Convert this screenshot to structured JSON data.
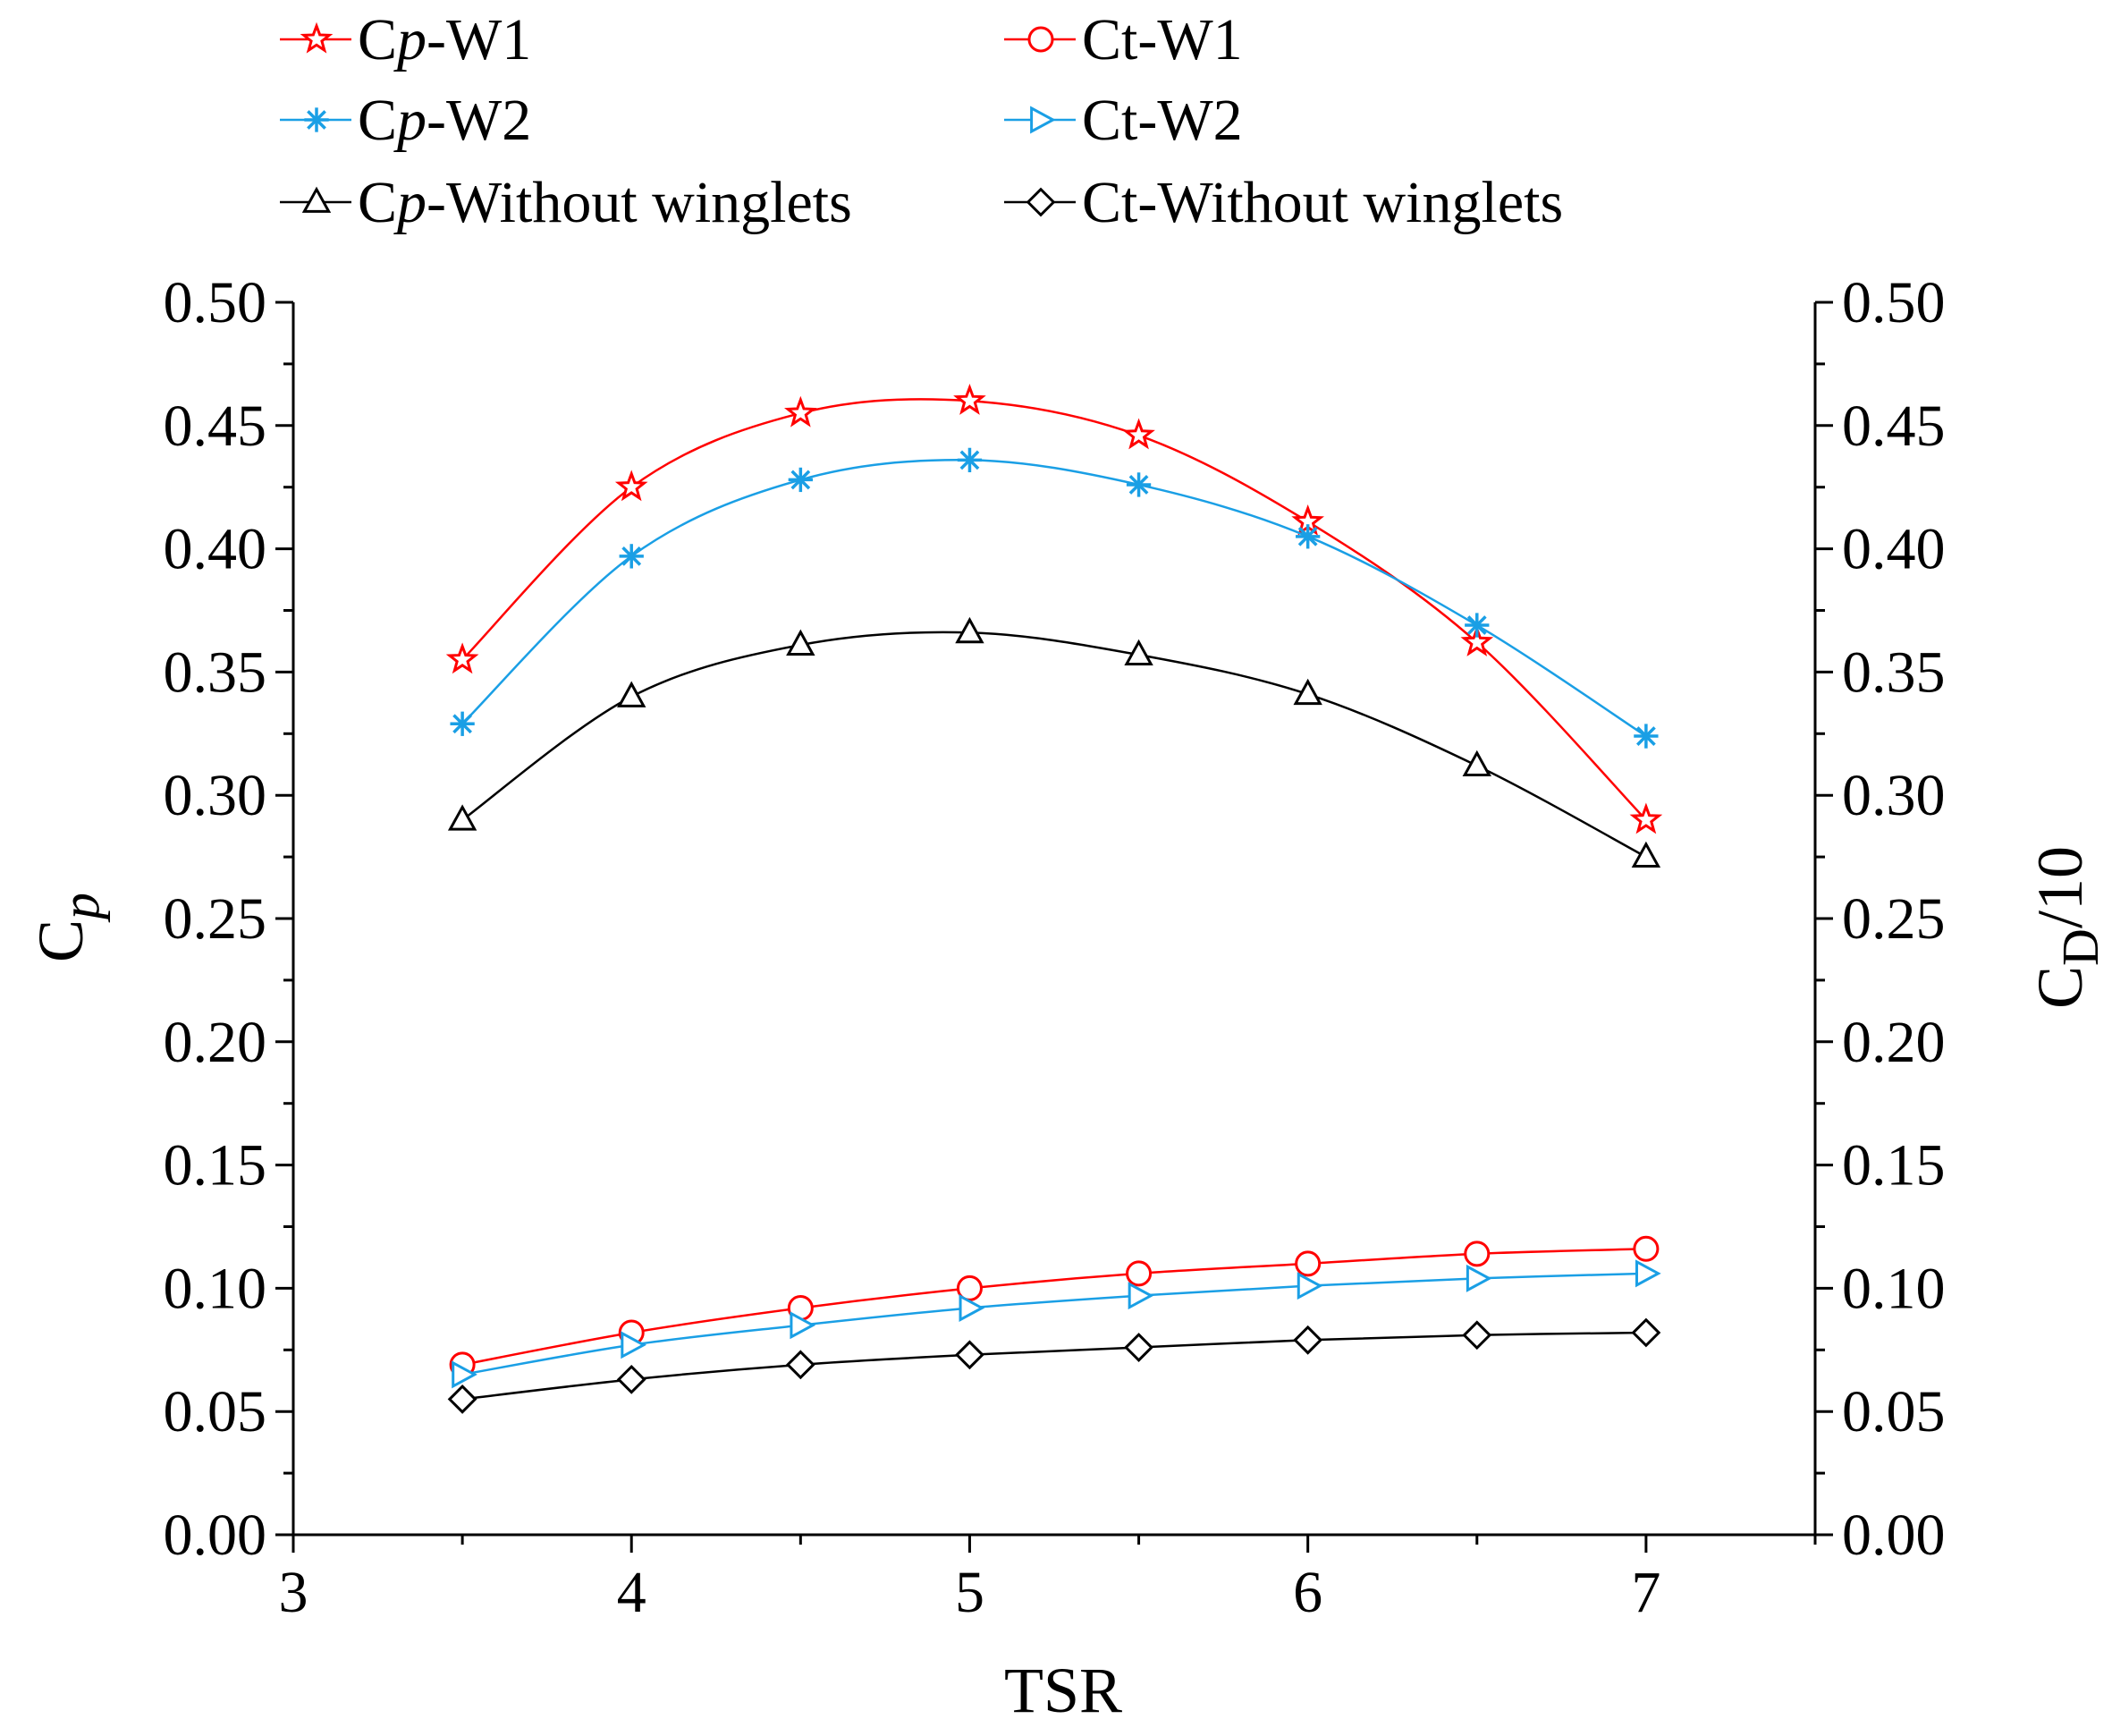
{
  "chart_data": {
    "type": "line",
    "title": "",
    "xlabel": "TSR",
    "ylabel": {
      "main": "C",
      "sub": "p"
    },
    "y2label": {
      "main": "C",
      "sub": "D",
      "rest": "/10"
    },
    "xlim": [
      3,
      7.5
    ],
    "ylim": [
      0,
      0.5
    ],
    "y2lim": [
      0,
      0.5
    ],
    "xticks": [
      3,
      4,
      5,
      6,
      7
    ],
    "yticks": [
      "0.00",
      "0.05",
      "0.10",
      "0.15",
      "0.20",
      "0.25",
      "0.30",
      "0.35",
      "0.40",
      "0.45",
      "0.50"
    ],
    "grid": false,
    "legend_position": "top",
    "x": [
      3.5,
      4.0,
      4.5,
      5.0,
      5.5,
      6.0,
      6.5,
      7.0
    ],
    "series": [
      {
        "name_prefix": "C",
        "name_italic": "p",
        "name_suffix": "-W1",
        "color": "#ff0000",
        "marker": "star",
        "values": [
          0.355,
          0.425,
          0.455,
          0.46,
          0.446,
          0.411,
          0.362,
          0.29
        ]
      },
      {
        "name_prefix": "Ct",
        "name_italic": "",
        "name_suffix": "-W1",
        "color": "#ff0000",
        "marker": "circle",
        "values": [
          0.069,
          0.082,
          0.092,
          0.1,
          0.106,
          0.11,
          0.114,
          0.116
        ]
      },
      {
        "name_prefix": "C",
        "name_italic": "p",
        "name_suffix": "-W2",
        "color": "#1a9fe5",
        "marker": "asterisk",
        "values": [
          0.329,
          0.397,
          0.428,
          0.436,
          0.426,
          0.405,
          0.369,
          0.324
        ]
      },
      {
        "name_prefix": "Ct",
        "name_italic": "",
        "name_suffix": "-W2",
        "color": "#1a9fe5",
        "marker": "triangle-right",
        "values": [
          0.065,
          0.077,
          0.085,
          0.092,
          0.097,
          0.101,
          0.104,
          0.106
        ]
      },
      {
        "name_prefix": "C",
        "name_italic": "p",
        "name_suffix": "-Without winglets",
        "color": "#000000",
        "marker": "triangle-up",
        "values": [
          0.29,
          0.34,
          0.361,
          0.366,
          0.357,
          0.341,
          0.312,
          0.275
        ]
      },
      {
        "name_prefix": "Ct",
        "name_italic": "",
        "name_suffix": "-Without winglets",
        "color": "#000000",
        "marker": "diamond",
        "values": [
          0.055,
          0.063,
          0.069,
          0.073,
          0.076,
          0.079,
          0.081,
          0.082
        ]
      }
    ]
  }
}
